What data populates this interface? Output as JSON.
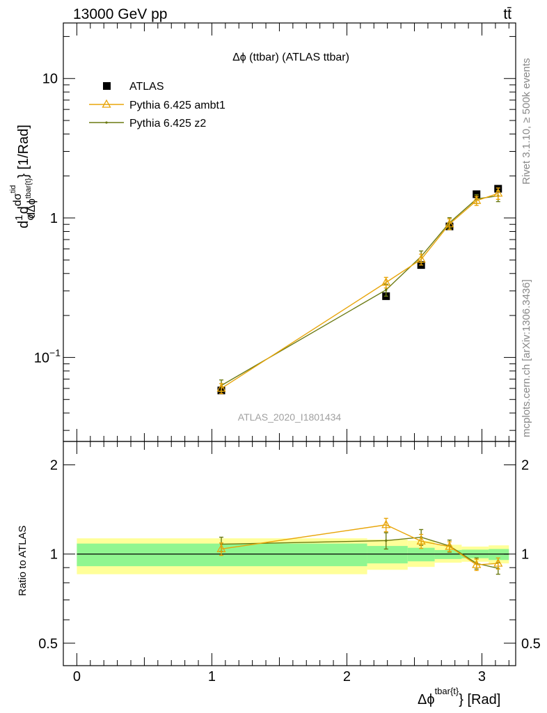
{
  "header": {
    "left": "13000 GeV pp",
    "right": "tt̄"
  },
  "side_labels": {
    "rivet": "Rivet 3.1.10, ≥ 500k events",
    "mcplots": "mcplots.cern.ch [arXiv:1306.3436]"
  },
  "chart_data": [
    {
      "type": "scatter",
      "panel": "main",
      "title": "Δϕ (ttbar) (ATLAS ttbar)",
      "watermark": "ATLAS_2020_I1801434",
      "ylabel": "d(1/σ)dσ^{tid}/dΔϕ^{tbar{t}} [1/Rad]",
      "ylabel_parts": {
        "d": "d",
        "one": "1",
        "sigma": "σ",
        "dsigma": "dσ",
        "sup": "tid",
        "ddphi": "dΔϕ",
        "sub": "tbar{t}",
        "unit": "} [1/Rad]"
      },
      "yscale": "log",
      "xlim": [
        -0.1,
        3.25
      ],
      "ylim": [
        0.025,
        25
      ],
      "y_ticks": [
        {
          "value": 0.1,
          "label": "10",
          "exp": "−1"
        },
        {
          "value": 1,
          "label": "1"
        },
        {
          "value": 10,
          "label": "10"
        }
      ],
      "legend_position": "top-left",
      "series": [
        {
          "name": "ATLAS",
          "marker": "square",
          "color": "#000000",
          "x": [
            1.07,
            2.29,
            2.55,
            2.76,
            2.96,
            3.12
          ],
          "y": [
            0.058,
            0.275,
            0.46,
            0.87,
            1.48,
            1.62
          ]
        },
        {
          "name": "Pythia 6.425 ambt1",
          "marker": "triangle",
          "color": "#e8a50a",
          "x": [
            1.07,
            2.29,
            2.55,
            2.76,
            2.96,
            3.12
          ],
          "y": [
            0.06,
            0.345,
            0.505,
            0.905,
            1.33,
            1.5
          ],
          "err": [
            0.005,
            0.03,
            0.045,
            0.08,
            0.1,
            0.14
          ]
        },
        {
          "name": "Pythia 6.425 z2",
          "marker": "dot",
          "color": "#6b7a12",
          "x": [
            1.07,
            2.29,
            2.55,
            2.76,
            2.96,
            3.12
          ],
          "y": [
            0.063,
            0.305,
            0.53,
            0.925,
            1.37,
            1.44
          ],
          "err": [
            0.006,
            0.03,
            0.05,
            0.08,
            0.1,
            0.13
          ]
        }
      ]
    },
    {
      "type": "line",
      "panel": "ratio",
      "ylabel": "Ratio to ATLAS",
      "xlabel": "Δϕ",
      "xlabel_sup": "tbar{t}",
      "xlabel_unit": "} [Rad]",
      "yscale": "log",
      "xlim": [
        -0.1,
        3.25
      ],
      "ylim": [
        0.42,
        2.4
      ],
      "x_ticks": [
        0,
        1,
        2,
        3
      ],
      "y_ticks": [
        {
          "value": 0.5,
          "label": "0.5"
        },
        {
          "value": 1,
          "label": "1"
        },
        {
          "value": 2,
          "label": "2"
        }
      ],
      "bands": {
        "green_color": "#90f690",
        "yellow_color": "#ffff99",
        "bins": [
          {
            "lo": 0.0,
            "hi": 2.15,
            "g_lo": 0.91,
            "g_hi": 1.085,
            "y_lo": 0.855,
            "y_hi": 1.13
          },
          {
            "lo": 2.15,
            "hi": 2.45,
            "g_lo": 0.93,
            "g_hi": 1.065,
            "y_lo": 0.885,
            "y_hi": 1.12
          },
          {
            "lo": 2.45,
            "hi": 2.65,
            "g_lo": 0.945,
            "g_hi": 1.05,
            "y_lo": 0.905,
            "y_hi": 1.11
          },
          {
            "lo": 2.65,
            "hi": 2.85,
            "g_lo": 0.962,
            "g_hi": 1.032,
            "y_lo": 0.935,
            "y_hi": 1.075
          },
          {
            "lo": 2.85,
            "hi": 3.05,
            "g_lo": 0.968,
            "g_hi": 1.035,
            "y_lo": 0.942,
            "y_hi": 1.06
          },
          {
            "lo": 3.05,
            "hi": 3.2,
            "g_lo": 0.955,
            "g_hi": 1.04,
            "y_lo": 0.93,
            "y_hi": 1.07
          }
        ]
      },
      "series": [
        {
          "name": "Pythia 6.425 ambt1",
          "marker": "triangle",
          "color": "#e8a50a",
          "x": [
            1.07,
            2.29,
            2.55,
            2.76,
            2.96,
            3.12
          ],
          "y": [
            1.04,
            1.255,
            1.105,
            1.06,
            0.92,
            0.93
          ],
          "err": [
            0.05,
            0.065,
            0.06,
            0.04,
            0.04,
            0.04
          ]
        },
        {
          "name": "Pythia 6.425 z2",
          "marker": "dot",
          "color": "#6b7a12",
          "x": [
            1.07,
            2.29,
            2.55,
            2.76,
            2.96,
            3.12
          ],
          "y": [
            1.08,
            1.11,
            1.14,
            1.065,
            0.93,
            0.895
          ],
          "err": [
            0.06,
            0.07,
            0.07,
            0.05,
            0.04,
            0.04
          ]
        }
      ]
    }
  ]
}
